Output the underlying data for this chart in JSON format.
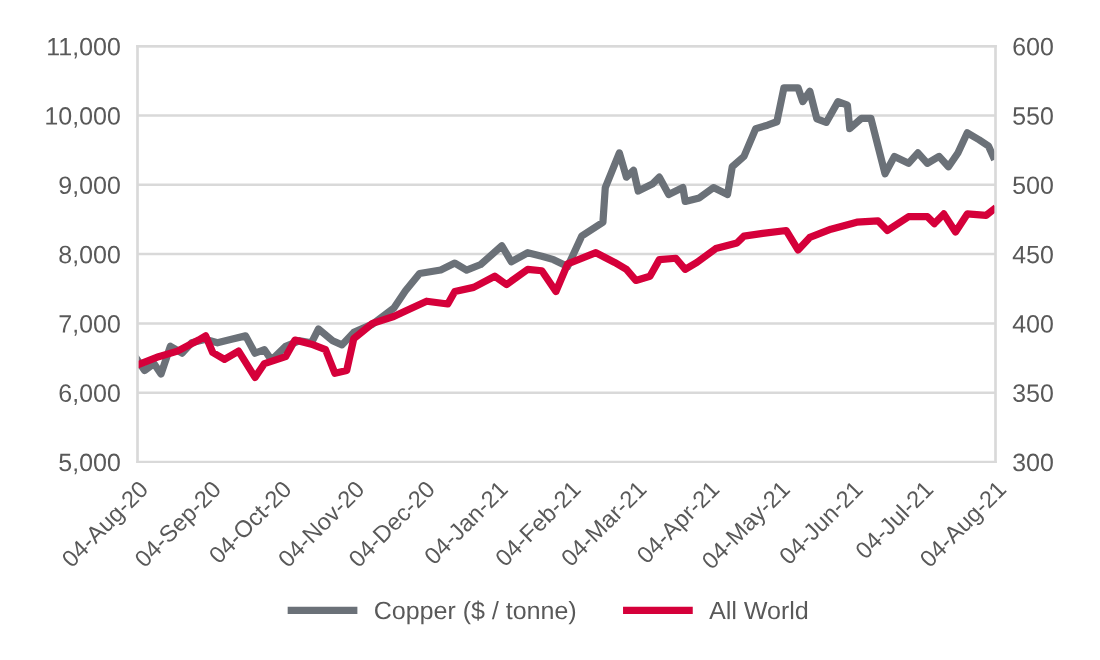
{
  "chart_data": {
    "type": "line",
    "xlim": [
      "2020-08-04",
      "2021-08-04"
    ],
    "xticks": [
      {
        "value": "2020-08-04",
        "label": "04-Aug-20"
      },
      {
        "value": "2020-09-04",
        "label": "04-Sep-20"
      },
      {
        "value": "2020-10-04",
        "label": "04-Oct-20"
      },
      {
        "value": "2020-11-04",
        "label": "04-Nov-20"
      },
      {
        "value": "2020-12-04",
        "label": "04-Dec-20"
      },
      {
        "value": "2021-01-04",
        "label": "04-Jan-21"
      },
      {
        "value": "2021-02-04",
        "label": "04-Feb-21"
      },
      {
        "value": "2021-03-04",
        "label": "04-Mar-21"
      },
      {
        "value": "2021-04-04",
        "label": "04-Apr-21"
      },
      {
        "value": "2021-05-04",
        "label": "04-May-21"
      },
      {
        "value": "2021-06-04",
        "label": "04-Jun-21"
      },
      {
        "value": "2021-07-04",
        "label": "04-Jul-21"
      },
      {
        "value": "2021-08-04",
        "label": "04-Aug-21"
      }
    ],
    "ylim": [
      5000,
      11000
    ],
    "yticks": [
      {
        "value": 5000,
        "label": "5,000"
      },
      {
        "value": 6000,
        "label": "6,000"
      },
      {
        "value": 7000,
        "label": "7,000"
      },
      {
        "value": 8000,
        "label": "8,000"
      },
      {
        "value": 9000,
        "label": "9,000"
      },
      {
        "value": 10000,
        "label": "10,000"
      },
      {
        "value": 11000,
        "label": "11,000"
      }
    ],
    "y2lim": [
      300,
      600
    ],
    "y2ticks": [
      300,
      350,
      400,
      450,
      500,
      550,
      600
    ],
    "grid": "y",
    "legend": "bottom",
    "marker": "none",
    "line_style": "solid",
    "series": [
      {
        "name": "Copper ($ / tonne)",
        "color": "#6b7178",
        "x": [
          "2020-08-04",
          "2020-08-07",
          "2020-08-11",
          "2020-08-14",
          "2020-08-18",
          "2020-08-23",
          "2020-08-27",
          "2020-09-02",
          "2020-09-07",
          "2020-09-13",
          "2020-09-19",
          "2020-09-23",
          "2020-09-27",
          "2020-09-30",
          "2020-10-06",
          "2020-10-12",
          "2020-10-17",
          "2020-10-20",
          "2020-10-26",
          "2020-10-30",
          "2020-11-04",
          "2020-11-12",
          "2020-11-21",
          "2020-11-26",
          "2020-12-02",
          "2020-12-11",
          "2020-12-17",
          "2020-12-22",
          "2020-12-28",
          "2021-01-06",
          "2021-01-10",
          "2021-01-17",
          "2021-01-23",
          "2021-01-28",
          "2021-02-03",
          "2021-02-09",
          "2021-02-18",
          "2021-02-19",
          "2021-02-25",
          "2021-02-28",
          "2021-03-03",
          "2021-03-05",
          "2021-03-11",
          "2021-03-14",
          "2021-03-18",
          "2021-03-24",
          "2021-03-25",
          "2021-03-31",
          "2021-04-06",
          "2021-04-12",
          "2021-04-14",
          "2021-04-19",
          "2021-04-24",
          "2021-04-29",
          "2021-05-03",
          "2021-05-06",
          "2021-05-12",
          "2021-05-14",
          "2021-05-17",
          "2021-05-20",
          "2021-05-24",
          "2021-05-29",
          "2021-06-02",
          "2021-06-03",
          "2021-06-08",
          "2021-06-12",
          "2021-06-15",
          "2021-06-18",
          "2021-06-22",
          "2021-06-28",
          "2021-07-02",
          "2021-07-06",
          "2021-07-11",
          "2021-07-15",
          "2021-07-19",
          "2021-07-23",
          "2021-07-28",
          "2021-08-01",
          "2021-08-03"
        ],
        "values": [
          6470,
          6320,
          6420,
          6270,
          6670,
          6570,
          6720,
          6770,
          6720,
          6770,
          6820,
          6570,
          6620,
          6470,
          6670,
          6750,
          6720,
          6920,
          6750,
          6690,
          6870,
          6990,
          7220,
          7470,
          7720,
          7770,
          7870,
          7770,
          7850,
          8120,
          7890,
          8020,
          7970,
          7920,
          7820,
          8260,
          8460,
          8960,
          9460,
          9110,
          9210,
          8910,
          9010,
          9110,
          8860,
          8960,
          8760,
          8810,
          8960,
          8860,
          9260,
          9410,
          9810,
          9860,
          9910,
          10400,
          10400,
          10200,
          10350,
          9950,
          9900,
          10200,
          10150,
          9810,
          9960,
          9960,
          9560,
          9160,
          9410,
          9310,
          9460,
          9310,
          9410,
          9260,
          9460,
          9750,
          9650,
          9560,
          9410
        ]
      },
      {
        "name": "All World",
        "color": "#d5003a",
        "axis": "y2",
        "x": [
          "2020-08-04",
          "2020-08-13",
          "2020-08-21",
          "2020-08-30",
          "2020-09-02",
          "2020-09-05",
          "2020-09-10",
          "2020-09-16",
          "2020-09-23",
          "2020-09-27",
          "2020-10-06",
          "2020-10-10",
          "2020-10-17",
          "2020-10-23",
          "2020-10-27",
          "2020-11-01",
          "2020-11-04",
          "2020-11-12",
          "2020-11-21",
          "2020-11-26",
          "2020-12-05",
          "2020-12-14",
          "2020-12-17",
          "2020-12-25",
          "2021-01-03",
          "2021-01-08",
          "2021-01-17",
          "2021-01-23",
          "2021-01-29",
          "2021-02-03",
          "2021-02-15",
          "2021-02-23",
          "2021-02-28",
          "2021-03-04",
          "2021-03-10",
          "2021-03-14",
          "2021-03-21",
          "2021-03-25",
          "2021-03-30",
          "2021-04-07",
          "2021-04-16",
          "2021-04-19",
          "2021-04-27",
          "2021-05-07",
          "2021-05-12",
          "2021-05-17",
          "2021-05-26",
          "2021-06-06",
          "2021-06-15",
          "2021-06-19",
          "2021-06-28",
          "2021-07-06",
          "2021-07-09",
          "2021-07-13",
          "2021-07-18",
          "2021-07-23",
          "2021-07-31",
          "2021-08-03"
        ],
        "values": [
          370,
          376,
          380,
          388,
          391,
          379,
          374,
          380,
          361,
          371,
          376,
          388,
          385,
          381,
          364,
          366,
          389,
          400,
          405,
          409,
          416,
          414,
          423,
          426,
          434,
          428,
          439,
          438,
          423,
          443,
          451,
          444,
          439,
          431,
          434,
          446,
          447,
          439,
          444,
          454,
          458,
          463,
          465,
          467,
          453,
          462,
          468,
          473,
          474,
          467,
          477,
          477,
          472,
          479,
          466,
          479,
          478,
          482
        ]
      }
    ]
  }
}
